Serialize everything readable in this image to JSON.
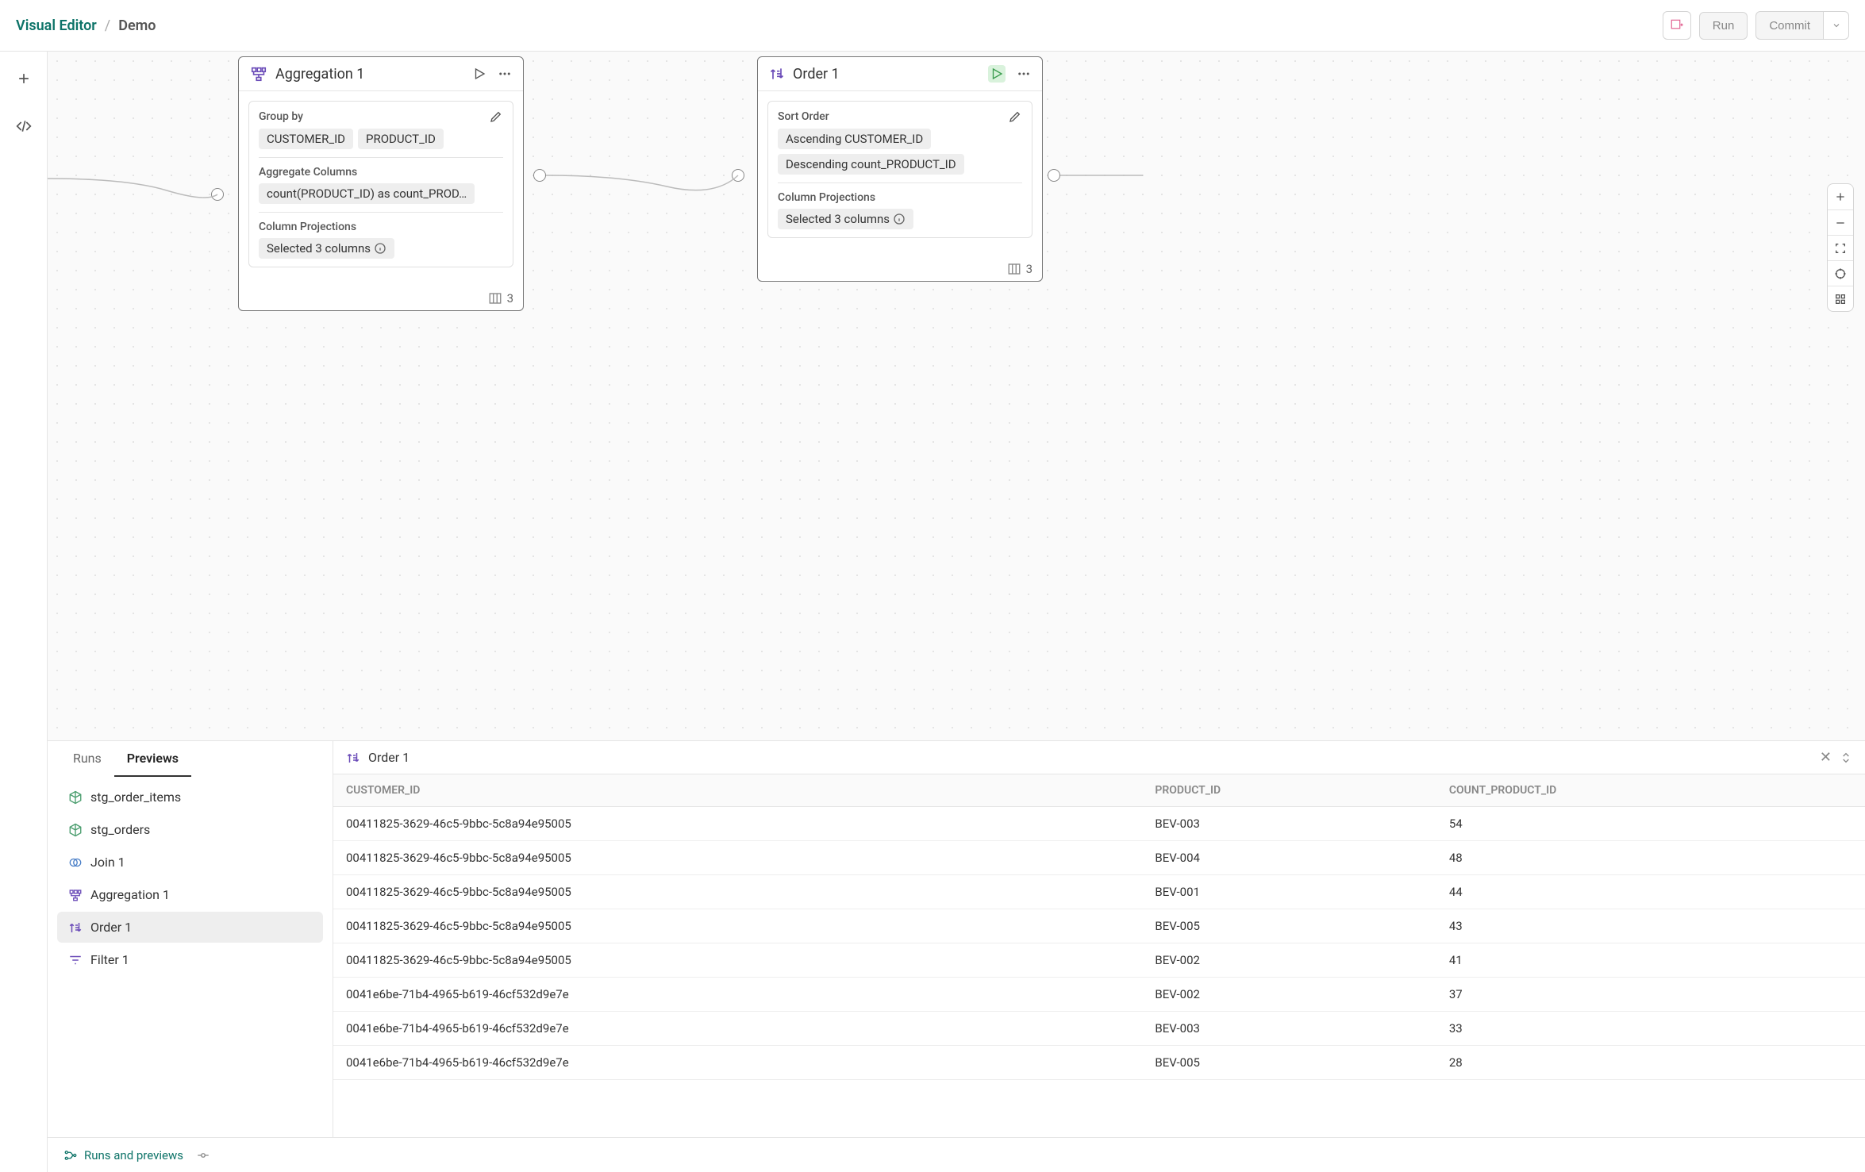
{
  "breadcrumb": {
    "root": "Visual Editor",
    "current": "Demo"
  },
  "actions": {
    "run": "Run",
    "commit": "Commit"
  },
  "nodes": {
    "aggregation": {
      "title": "Aggregation 1",
      "group_by_label": "Group by",
      "group_by": [
        "CUSTOMER_ID",
        "PRODUCT_ID"
      ],
      "agg_label": "Aggregate Columns",
      "agg_pill": "count(PRODUCT_ID) as count_PROD…",
      "proj_label": "Column Projections",
      "proj_pill": "Selected 3 columns",
      "col_count": "3"
    },
    "order": {
      "title": "Order 1",
      "sort_label": "Sort Order",
      "sort_items": [
        "Ascending CUSTOMER_ID",
        "Descending count_PRODUCT_ID"
      ],
      "proj_label": "Column Projections",
      "proj_pill": "Selected 3 columns",
      "col_count": "3"
    }
  },
  "panel": {
    "tabs": {
      "runs": "Runs",
      "previews": "Previews"
    },
    "items": [
      {
        "icon": "cube-green",
        "label": "stg_order_items"
      },
      {
        "icon": "cube-green",
        "label": "stg_orders"
      },
      {
        "icon": "join",
        "label": "Join 1"
      },
      {
        "icon": "aggregation",
        "label": "Aggregation 1"
      },
      {
        "icon": "order",
        "label": "Order 1",
        "selected": true
      },
      {
        "icon": "filter",
        "label": "Filter 1"
      }
    ],
    "preview_title": "Order 1",
    "columns": [
      "CUSTOMER_ID",
      "PRODUCT_ID",
      "COUNT_PRODUCT_ID"
    ],
    "rows": [
      [
        "00411825-3629-46c5-9bbc-5c8a94e95005",
        "BEV-003",
        "54"
      ],
      [
        "00411825-3629-46c5-9bbc-5c8a94e95005",
        "BEV-004",
        "48"
      ],
      [
        "00411825-3629-46c5-9bbc-5c8a94e95005",
        "BEV-001",
        "44"
      ],
      [
        "00411825-3629-46c5-9bbc-5c8a94e95005",
        "BEV-005",
        "43"
      ],
      [
        "00411825-3629-46c5-9bbc-5c8a94e95005",
        "BEV-002",
        "41"
      ],
      [
        "0041e6be-71b4-4965-b619-46cf532d9e7e",
        "BEV-002",
        "37"
      ],
      [
        "0041e6be-71b4-4965-b619-46cf532d9e7e",
        "BEV-003",
        "33"
      ],
      [
        "0041e6be-71b4-4965-b619-46cf532d9e7e",
        "BEV-005",
        "28"
      ]
    ]
  },
  "footer": {
    "runs_previews": "Runs and previews"
  },
  "colors": {
    "teal": "#0d7368",
    "purple": "#6a4bb8",
    "blue": "#4a7fc7",
    "green": "#4a9d6e",
    "grey": "#777"
  }
}
